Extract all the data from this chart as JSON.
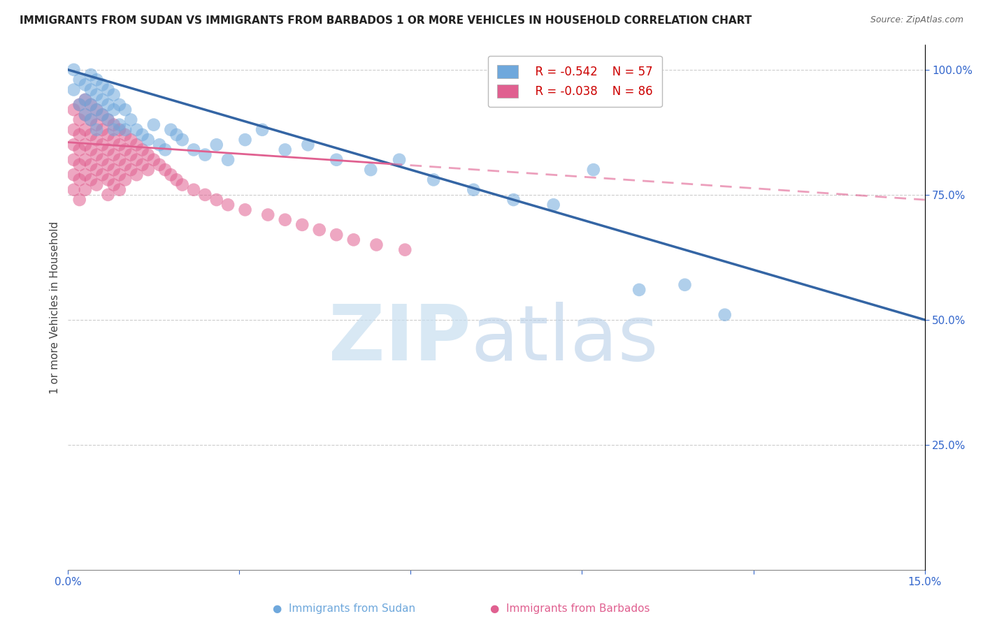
{
  "title": "IMMIGRANTS FROM SUDAN VS IMMIGRANTS FROM BARBADOS 1 OR MORE VEHICLES IN HOUSEHOLD CORRELATION CHART",
  "source": "Source: ZipAtlas.com",
  "ylabel": "1 or more Vehicles in Household",
  "xlim": [
    0.0,
    0.15
  ],
  "ylim": [
    0.0,
    1.05
  ],
  "legend_sudan_r": "R = -0.542",
  "legend_sudan_n": "N = 57",
  "legend_barbados_r": "R = -0.038",
  "legend_barbados_n": "N = 86",
  "sudan_color": "#6fa8dc",
  "barbados_color": "#e06090",
  "sudan_line_color": "#3465a4",
  "barbados_line_color": "#e06090",
  "sudan_points_x": [
    0.001,
    0.001,
    0.002,
    0.002,
    0.003,
    0.003,
    0.003,
    0.004,
    0.004,
    0.004,
    0.004,
    0.005,
    0.005,
    0.005,
    0.005,
    0.006,
    0.006,
    0.006,
    0.007,
    0.007,
    0.007,
    0.008,
    0.008,
    0.008,
    0.009,
    0.009,
    0.01,
    0.01,
    0.011,
    0.012,
    0.013,
    0.014,
    0.015,
    0.016,
    0.017,
    0.018,
    0.019,
    0.02,
    0.022,
    0.024,
    0.026,
    0.028,
    0.031,
    0.034,
    0.038,
    0.042,
    0.047,
    0.053,
    0.058,
    0.064,
    0.071,
    0.078,
    0.085,
    0.092,
    0.1,
    0.108,
    0.115
  ],
  "sudan_points_y": [
    1.0,
    0.96,
    0.98,
    0.93,
    0.97,
    0.94,
    0.91,
    0.99,
    0.96,
    0.93,
    0.9,
    0.98,
    0.95,
    0.92,
    0.88,
    0.97,
    0.94,
    0.91,
    0.96,
    0.93,
    0.9,
    0.95,
    0.92,
    0.88,
    0.93,
    0.89,
    0.92,
    0.88,
    0.9,
    0.88,
    0.87,
    0.86,
    0.89,
    0.85,
    0.84,
    0.88,
    0.87,
    0.86,
    0.84,
    0.83,
    0.85,
    0.82,
    0.86,
    0.88,
    0.84,
    0.85,
    0.82,
    0.8,
    0.82,
    0.78,
    0.76,
    0.74,
    0.73,
    0.8,
    0.56,
    0.57,
    0.51
  ],
  "barbados_points_x": [
    0.001,
    0.001,
    0.001,
    0.001,
    0.001,
    0.001,
    0.002,
    0.002,
    0.002,
    0.002,
    0.002,
    0.002,
    0.002,
    0.003,
    0.003,
    0.003,
    0.003,
    0.003,
    0.003,
    0.003,
    0.004,
    0.004,
    0.004,
    0.004,
    0.004,
    0.004,
    0.005,
    0.005,
    0.005,
    0.005,
    0.005,
    0.005,
    0.006,
    0.006,
    0.006,
    0.006,
    0.006,
    0.007,
    0.007,
    0.007,
    0.007,
    0.007,
    0.007,
    0.008,
    0.008,
    0.008,
    0.008,
    0.008,
    0.009,
    0.009,
    0.009,
    0.009,
    0.009,
    0.01,
    0.01,
    0.01,
    0.01,
    0.011,
    0.011,
    0.011,
    0.012,
    0.012,
    0.012,
    0.013,
    0.013,
    0.014,
    0.014,
    0.015,
    0.016,
    0.017,
    0.018,
    0.019,
    0.02,
    0.022,
    0.024,
    0.026,
    0.028,
    0.031,
    0.035,
    0.038,
    0.041,
    0.044,
    0.047,
    0.05,
    0.054,
    0.059
  ],
  "barbados_points_y": [
    0.92,
    0.88,
    0.85,
    0.82,
    0.79,
    0.76,
    0.93,
    0.9,
    0.87,
    0.84,
    0.81,
    0.78,
    0.74,
    0.94,
    0.91,
    0.88,
    0.85,
    0.82,
    0.79,
    0.76,
    0.93,
    0.9,
    0.87,
    0.84,
    0.81,
    0.78,
    0.92,
    0.89,
    0.86,
    0.83,
    0.8,
    0.77,
    0.91,
    0.88,
    0.85,
    0.82,
    0.79,
    0.9,
    0.87,
    0.84,
    0.81,
    0.78,
    0.75,
    0.89,
    0.86,
    0.83,
    0.8,
    0.77,
    0.88,
    0.85,
    0.82,
    0.79,
    0.76,
    0.87,
    0.84,
    0.81,
    0.78,
    0.86,
    0.83,
    0.8,
    0.85,
    0.82,
    0.79,
    0.84,
    0.81,
    0.83,
    0.8,
    0.82,
    0.81,
    0.8,
    0.79,
    0.78,
    0.77,
    0.76,
    0.75,
    0.74,
    0.73,
    0.72,
    0.71,
    0.7,
    0.69,
    0.68,
    0.67,
    0.66,
    0.65,
    0.64
  ],
  "background_color": "#ffffff",
  "grid_color": "#cccccc"
}
